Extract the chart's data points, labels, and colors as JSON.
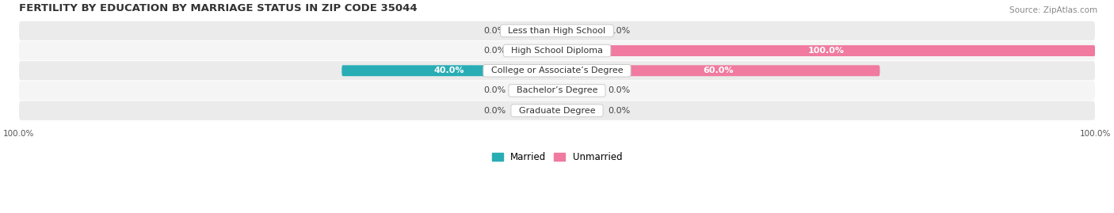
{
  "title": "FERTILITY BY EDUCATION BY MARRIAGE STATUS IN ZIP CODE 35044",
  "source": "Source: ZipAtlas.com",
  "categories": [
    "Less than High School",
    "High School Diploma",
    "College or Associate’s Degree",
    "Bachelor’s Degree",
    "Graduate Degree"
  ],
  "married_values": [
    0.0,
    0.0,
    40.0,
    0.0,
    0.0
  ],
  "unmarried_values": [
    0.0,
    100.0,
    60.0,
    0.0,
    0.0
  ],
  "married_color_dark": "#29adb5",
  "married_color_light": "#a8d8dc",
  "unmarried_color_dark": "#f07aa0",
  "unmarried_color_light": "#f5c0d0",
  "bg_row_color_odd": "#ebebeb",
  "bg_row_color_even": "#f5f5f5",
  "bar_height": 0.55,
  "min_bar_pct": 8.0,
  "xlim": 100,
  "figsize": [
    14.06,
    2.69
  ],
  "dpi": 100,
  "title_fontsize": 9.5,
  "label_fontsize": 8.0,
  "tick_fontsize": 7.5,
  "source_fontsize": 7.5,
  "legend_fontsize": 8.5
}
